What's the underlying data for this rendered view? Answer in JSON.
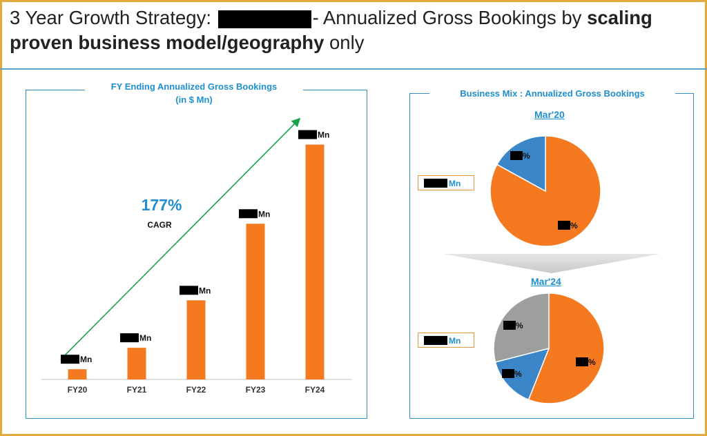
{
  "header": {
    "title_part1": "3 Year Growth Strategy:",
    "title_part2": "- Annualized Gross Bookings by",
    "title_bold1": "scaling proven business model/geography",
    "title_part3": "only"
  },
  "left_panel": {
    "title_line1": "FY Ending Annualized Gross Bookings",
    "title_line2": "(in $ Mn)",
    "cagr_value": "177%",
    "cagr_label": "CAGR",
    "value_suffix": "Mn"
  },
  "right_panel": {
    "title": "Business Mix : Annualized Gross Bookings",
    "total_suffix": "Mn",
    "pct_suffix": "%",
    "colors": {
      "orange": "#f57a1f",
      "blue": "#3a86c8",
      "gray": "#9e9e9e"
    }
  },
  "chart_data": [
    {
      "type": "bar",
      "categories": [
        "FY20",
        "FY21",
        "FY22",
        "FY23",
        "FY24"
      ],
      "values": [
        2,
        6.2,
        15.5,
        30.5,
        46
      ],
      "value_labels_redacted": true,
      "ylim": [
        0,
        50
      ],
      "color": "#f57a1f",
      "trend_annotation": "177% CAGR"
    },
    {
      "type": "pie",
      "title": "Mar'20",
      "slices": [
        {
          "color": "#f57a1f",
          "value": 83,
          "label_redacted": true
        },
        {
          "color": "#3a86c8",
          "value": 17,
          "label_redacted": true
        }
      ]
    },
    {
      "type": "pie",
      "title": "Mar'24",
      "slices": [
        {
          "color": "#f57a1f",
          "value": 56,
          "label_redacted": true
        },
        {
          "color": "#3a86c8",
          "value": 15,
          "label_redacted": true
        },
        {
          "color": "#9e9e9e",
          "value": 29,
          "label_redacted": true
        }
      ]
    }
  ]
}
